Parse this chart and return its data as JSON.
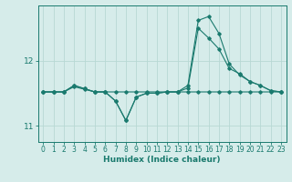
{
  "xlabel": "Humidex (Indice chaleur)",
  "background_color": "#d6ecea",
  "grid_color": "#b8d8d4",
  "line_color": "#1a7a6e",
  "x_values": [
    0,
    1,
    2,
    3,
    4,
    5,
    6,
    7,
    8,
    9,
    10,
    11,
    12,
    13,
    14,
    15,
    16,
    17,
    18,
    19,
    20,
    21,
    22,
    23
  ],
  "series1": [
    11.52,
    11.52,
    11.52,
    11.6,
    11.56,
    11.52,
    11.52,
    11.52,
    11.52,
    11.52,
    11.52,
    11.52,
    11.52,
    11.52,
    11.52,
    11.52,
    11.52,
    11.52,
    11.52,
    11.52,
    11.52,
    11.52,
    11.52,
    11.52
  ],
  "series2": [
    11.52,
    11.52,
    11.52,
    11.62,
    11.57,
    11.52,
    11.52,
    11.38,
    11.08,
    11.44,
    11.5,
    11.5,
    11.52,
    11.52,
    11.58,
    12.5,
    12.35,
    12.18,
    11.88,
    11.8,
    11.68,
    11.62,
    11.54,
    11.52
  ],
  "series3": [
    11.52,
    11.52,
    11.52,
    11.62,
    11.57,
    11.52,
    11.52,
    11.38,
    11.08,
    11.44,
    11.5,
    11.5,
    11.52,
    11.52,
    11.62,
    12.62,
    12.68,
    12.42,
    11.95,
    11.78,
    11.68,
    11.62,
    11.54,
    11.52
  ],
  "ylim": [
    10.75,
    12.85
  ],
  "yticks": [
    11,
    12
  ],
  "xticks": [
    0,
    1,
    2,
    3,
    4,
    5,
    6,
    7,
    8,
    9,
    10,
    11,
    12,
    13,
    14,
    15,
    16,
    17,
    18,
    19,
    20,
    21,
    22,
    23
  ],
  "tick_fontsize": 5.5,
  "xlabel_fontsize": 6.5
}
